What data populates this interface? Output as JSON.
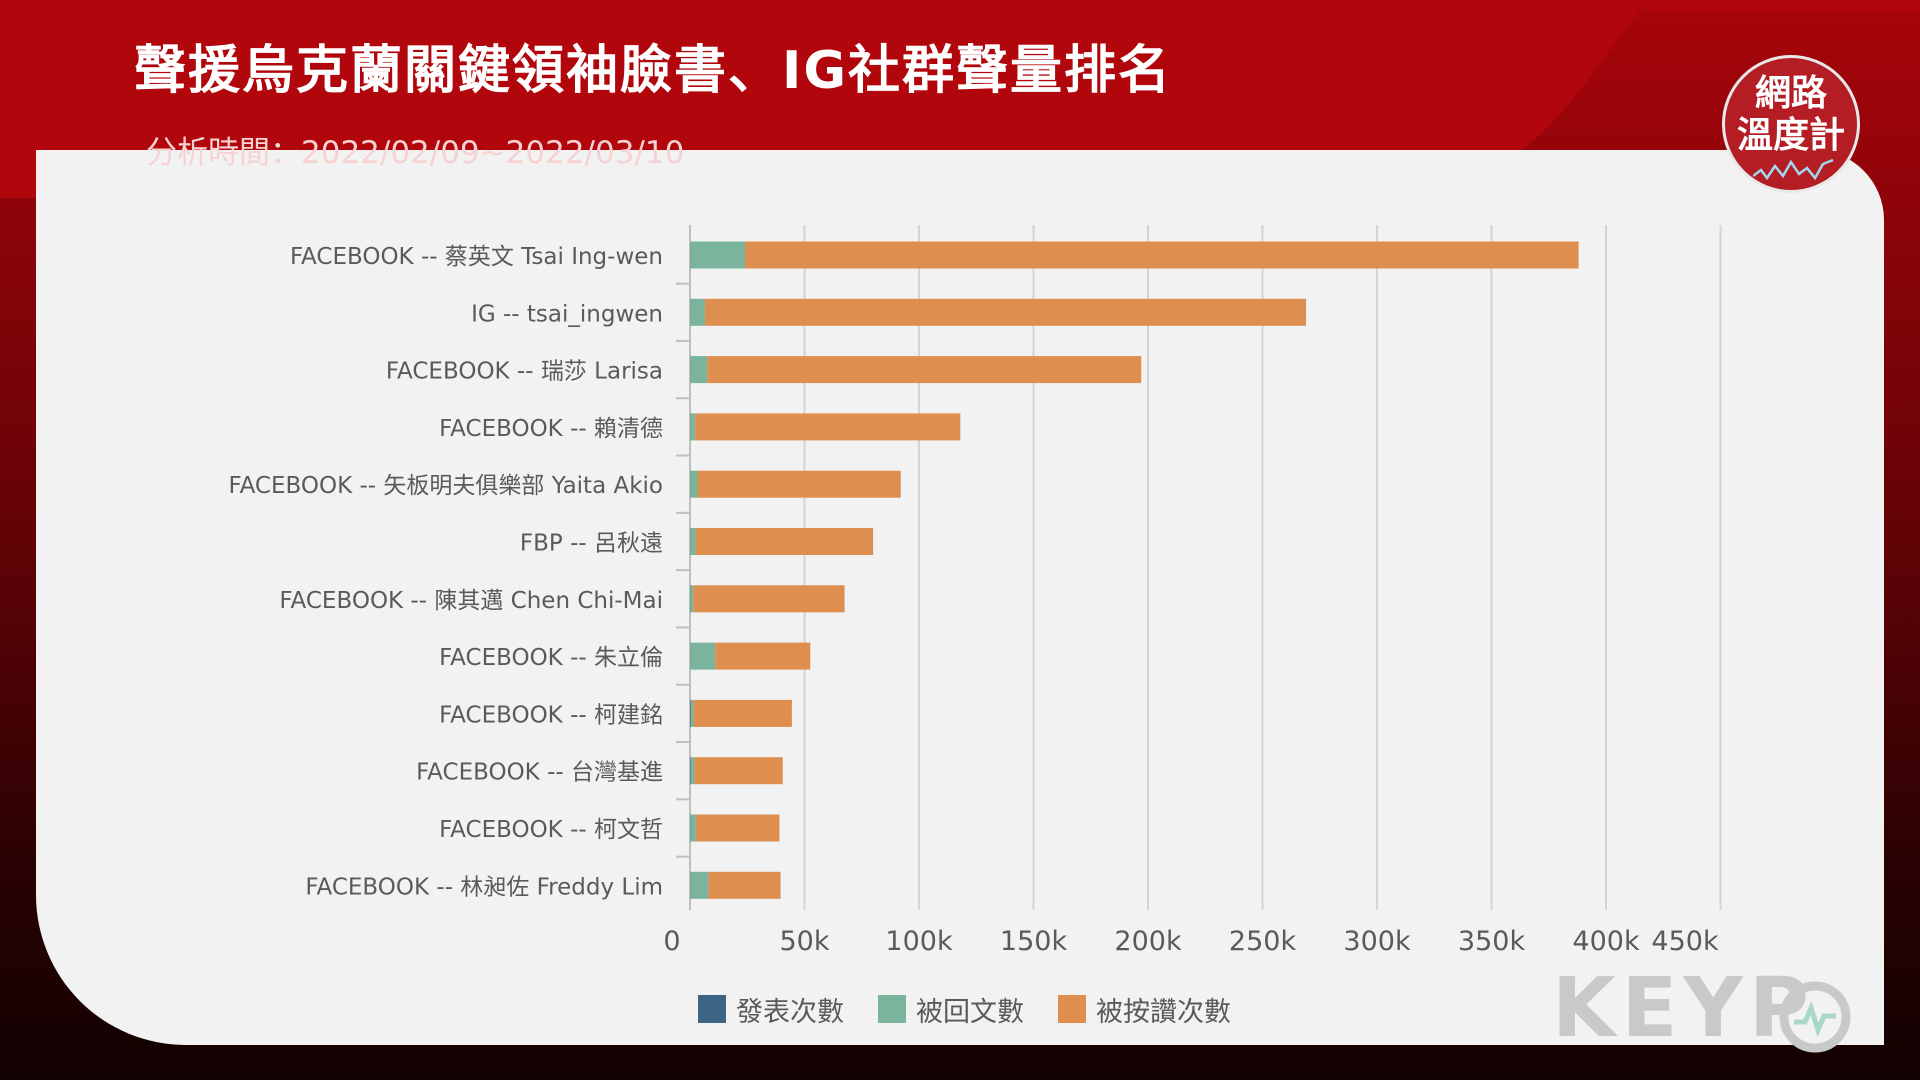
{
  "header": {
    "title": "聲援烏克蘭關鍵領袖臉書、IG社群聲量排名",
    "subtitle": "分析時間：2022/02/09~2022/03/10"
  },
  "badge": {
    "line1": "網路",
    "line2": "溫度計"
  },
  "watermark": {
    "text": "KEYP"
  },
  "colors": {
    "header_red": "#b1060c",
    "post": "#3e6484",
    "reply": "#7bb49c",
    "like": "#de8f4f",
    "grid": "#d4d4d4"
  },
  "chart_data": {
    "type": "bar",
    "orientation": "horizontal",
    "stacked": true,
    "categories": [
      "FACEBOOK -- 蔡英文 Tsai Ing-wen",
      "IG -- tsai_ingwen",
      "FACEBOOK -- 瑞莎 Larisa",
      "FACEBOOK -- 賴清德",
      "FACEBOOK -- 矢板明夫俱樂部 Yaita Akio",
      "FBP -- 呂秋遠",
      "FACEBOOK -- 陳其邁 Chen Chi-Mai",
      "FACEBOOK -- 朱立倫",
      "FACEBOOK -- 柯建銘",
      "FACEBOOK -- 台灣基進",
      "FACEBOOK -- 柯文哲",
      "FACEBOOK -- 林昶佐 Freddy Lim"
    ],
    "series": [
      {
        "name": "發表次數",
        "color": "#3e6484",
        "values": [
          40,
          20,
          30,
          40,
          50,
          60,
          100,
          30,
          300,
          200,
          60,
          40
        ]
      },
      {
        "name": "被回文數",
        "color": "#7bb49c",
        "values": [
          24000,
          6500,
          7500,
          2200,
          3200,
          2400,
          1300,
          11000,
          1200,
          1800,
          2500,
          8000
        ]
      },
      {
        "name": "被按讚次數",
        "color": "#de8f4f",
        "values": [
          364000,
          262500,
          189500,
          115800,
          88800,
          77500,
          66100,
          41500,
          43000,
          38500,
          36500,
          31500
        ]
      }
    ],
    "x_ticks": [
      "0",
      "50k",
      "100k",
      "150k",
      "200k",
      "250k",
      "300k",
      "350k",
      "400k",
      "450k"
    ],
    "xlim": [
      0,
      450000
    ],
    "grid": "vertical",
    "legend_position": "bottom"
  }
}
